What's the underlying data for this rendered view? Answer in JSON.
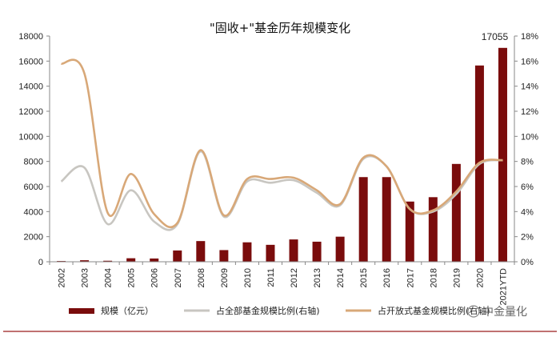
{
  "chart_data": {
    "type": "bar",
    "title": "\"固收+\"基金历年规模变化",
    "categories": [
      "2002",
      "2003",
      "2004",
      "2005",
      "2006",
      "2007",
      "2008",
      "2009",
      "2010",
      "2011",
      "2012",
      "2013",
      "2014",
      "2015",
      "2016",
      "2017",
      "2018",
      "2019",
      "2020",
      "2021YTD"
    ],
    "ylim_left": [
      0,
      18000
    ],
    "yticks_left": [
      0,
      2000,
      4000,
      6000,
      8000,
      10000,
      12000,
      14000,
      16000,
      18000
    ],
    "ylim_right": [
      0,
      0.18
    ],
    "yticks_right": [
      "0%",
      "2%",
      "4%",
      "6%",
      "8%",
      "10%",
      "12%",
      "14%",
      "16%",
      "18%"
    ],
    "series": [
      {
        "name": "规模（亿元）",
        "type": "bar",
        "axis": "left",
        "color": "#7a0c0c",
        "values": [
          60,
          120,
          80,
          280,
          260,
          900,
          1650,
          930,
          1550,
          1350,
          1780,
          1600,
          2000,
          6750,
          6750,
          4800,
          5150,
          7800,
          15650,
          17055
        ]
      },
      {
        "name": "占全部基金规模比例(右轴)",
        "type": "line",
        "axis": "right",
        "color": "#c8c6c1",
        "values": [
          0.064,
          0.075,
          0.03,
          0.057,
          0.032,
          0.03,
          0.088,
          0.036,
          0.064,
          0.063,
          0.065,
          0.055,
          0.045,
          0.082,
          0.076,
          0.042,
          0.04,
          0.054,
          0.078,
          0.081
        ]
      },
      {
        "name": "占开放式基金规模比例(右轴)",
        "type": "line",
        "axis": "right",
        "color": "#d8a878",
        "values": [
          0.158,
          0.15,
          0.039,
          0.07,
          0.038,
          0.031,
          0.089,
          0.037,
          0.066,
          0.066,
          0.067,
          0.057,
          0.046,
          0.083,
          0.076,
          0.042,
          0.041,
          0.056,
          0.079,
          0.081
        ]
      }
    ],
    "annotations": [
      {
        "category": "2021YTD",
        "text": "17055"
      }
    ],
    "legend_labels": [
      "规模（亿元）",
      "占全部基金规模比例(右轴)",
      "占开放式基金规模比例(右轴)"
    ],
    "watermark": "中金量化",
    "grid": false
  }
}
